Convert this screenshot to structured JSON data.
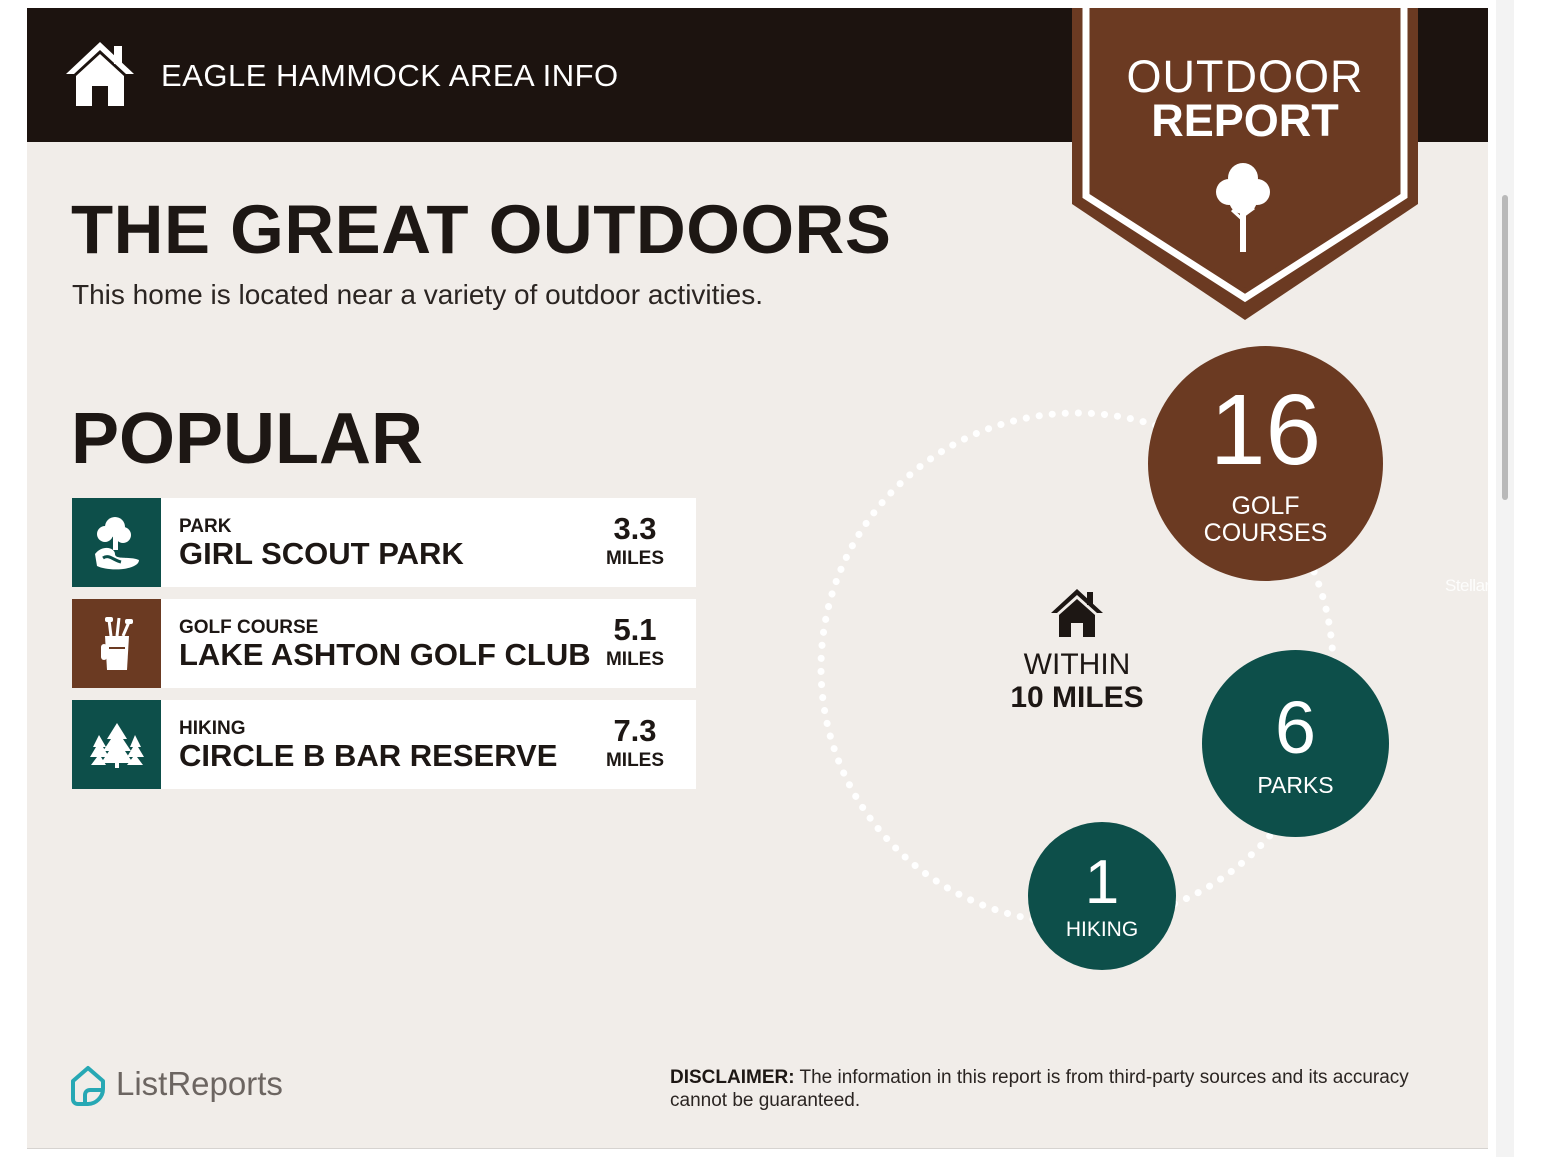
{
  "header": {
    "title": "EAGLE HAMMOCK AREA INFO"
  },
  "badge": {
    "line1": "OUTDOOR",
    "line2": "REPORT",
    "icon": "tree-icon"
  },
  "main": {
    "title": "THE GREAT OUTDOORS",
    "subtitle": "This home is located near a variety of outdoor activities."
  },
  "popular": {
    "heading": "POPULAR",
    "items": [
      {
        "category": "PARK",
        "name": "GIRL SCOUT PARK",
        "distance": "3.3",
        "unit": "MILES",
        "icon": "park-icon",
        "color": "#0d4f4a"
      },
      {
        "category": "GOLF COURSE",
        "name": "LAKE ASHTON GOLF CLUB",
        "distance": "5.1",
        "unit": "MILES",
        "icon": "golf-bag-icon",
        "color": "#6b3a22"
      },
      {
        "category": "HIKING",
        "name": "CIRCLE B BAR RESERVE",
        "distance": "7.3",
        "unit": "MILES",
        "icon": "pine-trees-icon",
        "color": "#0d4f4a"
      }
    ]
  },
  "within": {
    "line1": "WITHIN",
    "line2": "10 MILES",
    "icon": "home-icon"
  },
  "counts": {
    "golf": {
      "number": "16",
      "label_line1": "GOLF",
      "label_line2": "COURSES",
      "color": "#6b3a22"
    },
    "parks": {
      "number": "6",
      "label": "PARKS",
      "color": "#0d4f4a"
    },
    "hiking": {
      "number": "1",
      "label": "HIKING",
      "color": "#0d4f4a"
    }
  },
  "footer": {
    "logo_text": "ListReports",
    "logo_color": "#27a8b4",
    "disclaimer_label": "DISCLAIMER:",
    "disclaimer_text": " The information in this report is from third-party sources and its accuracy cannot be guaranteed."
  },
  "watermark": "StellarMLS",
  "colors": {
    "header_bg": "#1c130f",
    "page_bg": "#f1ede9",
    "brown": "#6b3a22",
    "teal": "#0d4f4a"
  }
}
